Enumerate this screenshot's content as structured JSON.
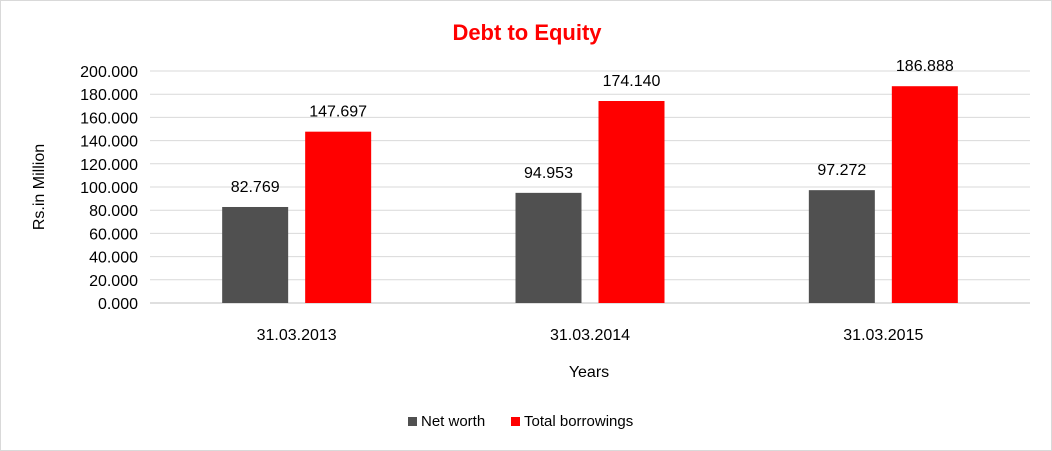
{
  "chart_data": {
    "type": "bar",
    "title": "Debt to Equity",
    "xlabel": "Years",
    "ylabel": "Rs.in Million",
    "categories": [
      "31.03.2013",
      "31.03.2014",
      "31.03.2015"
    ],
    "series": [
      {
        "name": "Net worth",
        "color": "#505050",
        "values": [
          82.769,
          94.953,
          97.272
        ],
        "labels": [
          "82.769",
          "94.953",
          "97.272"
        ]
      },
      {
        "name": "Total borrowings",
        "color": "#ff0000",
        "values": [
          147.697,
          174.14,
          186.888
        ],
        "labels": [
          "147.697",
          "174.140",
          "186.888"
        ]
      }
    ],
    "ylim": [
      0,
      200
    ],
    "yticks": [
      "0.000",
      "20.000",
      "40.000",
      "60.000",
      "80.000",
      "100.000",
      "120.000",
      "140.000",
      "160.000",
      "180.000",
      "200.000"
    ],
    "ytick_values": [
      0,
      20,
      40,
      60,
      80,
      100,
      120,
      140,
      160,
      180,
      200
    ],
    "grid": true,
    "legend_position": "bottom",
    "title_color": "#ff0000"
  }
}
